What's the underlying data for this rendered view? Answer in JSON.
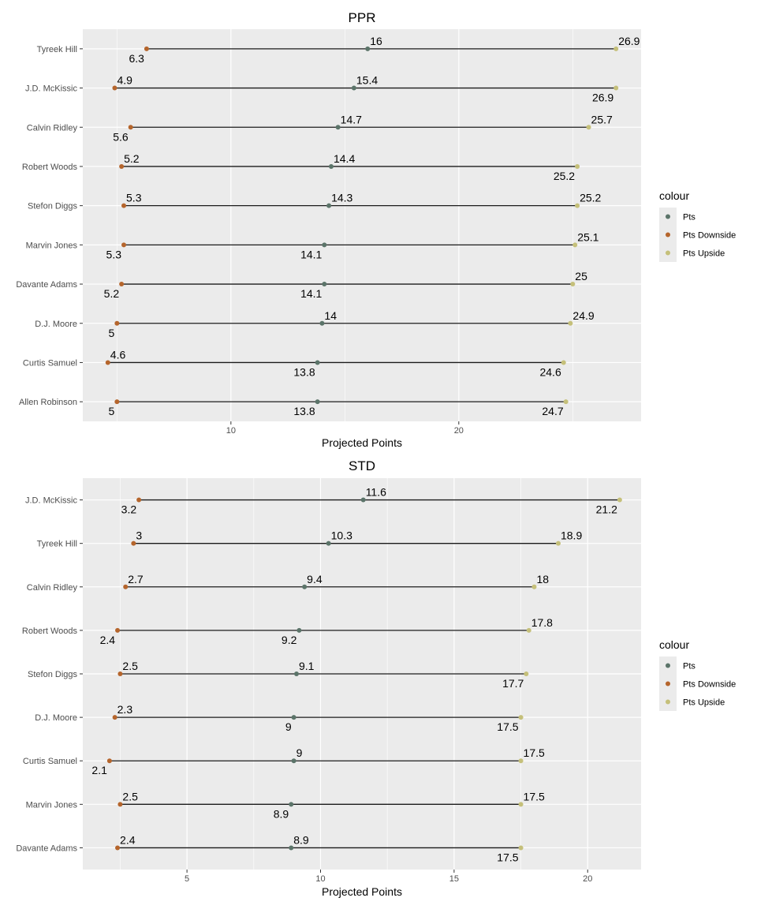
{
  "chart_data": [
    {
      "type": "dumbbell",
      "title": "PPR",
      "xlabel": "Projected Points",
      "xlim": [
        3.5,
        28.0
      ],
      "xticks": [
        10,
        20
      ],
      "grid": true,
      "legend_placement": "right",
      "legend_title": "colour",
      "legend": [
        {
          "label": "Pts",
          "color": "#5b7469"
        },
        {
          "label": "Pts Downside",
          "color": "#b5652c"
        },
        {
          "label": "Pts Upside",
          "color": "#c5c07a"
        }
      ],
      "categories": [
        "Tyreek Hill",
        "J.D. McKissic",
        "Calvin Ridley",
        "Robert Woods",
        "Stefon Diggs",
        "Marvin Jones",
        "Davante Adams",
        "D.J. Moore",
        "Curtis Samuel",
        "Allen Robinson"
      ],
      "series": [
        {
          "name": "Pts Downside",
          "values": [
            6.3,
            4.9,
            5.6,
            5.2,
            5.3,
            5.3,
            5.2,
            5.0,
            4.6,
            5.0
          ],
          "label_pos": [
            "below",
            "above",
            "below",
            "above",
            "above",
            "below",
            "below",
            "below",
            "above",
            "below"
          ]
        },
        {
          "name": "Pts",
          "values": [
            16,
            15.4,
            14.7,
            14.4,
            14.3,
            14.1,
            14.1,
            14,
            13.8,
            13.8
          ],
          "label_pos": [
            "above",
            "above",
            "above",
            "above",
            "above",
            "below",
            "below",
            "above",
            "below",
            "below"
          ]
        },
        {
          "name": "Pts Upside",
          "values": [
            26.9,
            26.9,
            25.7,
            25.2,
            25.2,
            25.1,
            25,
            24.9,
            24.6,
            24.7
          ],
          "label_pos": [
            "above",
            "below",
            "above",
            "below",
            "above",
            "above",
            "above",
            "above",
            "below",
            "below"
          ]
        }
      ]
    },
    {
      "type": "dumbbell",
      "title": "STD",
      "xlabel": "Projected Points",
      "xlim": [
        1.1,
        22.0
      ],
      "xticks": [
        5,
        10,
        15,
        20
      ],
      "grid": true,
      "legend_placement": "right",
      "legend_title": "colour",
      "legend": [
        {
          "label": "Pts",
          "color": "#5b7469"
        },
        {
          "label": "Pts Downside",
          "color": "#b5652c"
        },
        {
          "label": "Pts Upside",
          "color": "#c5c07a"
        }
      ],
      "categories": [
        "J.D. McKissic",
        "Tyreek Hill",
        "Calvin Ridley",
        "Robert Woods",
        "Stefon Diggs",
        "D.J. Moore",
        "Curtis Samuel",
        "Marvin Jones",
        "Davante Adams"
      ],
      "series": [
        {
          "name": "Pts Downside",
          "values": [
            3.2,
            3,
            2.7,
            2.4,
            2.5,
            2.3,
            2.1,
            2.5,
            2.4
          ],
          "label_pos": [
            "below",
            "above",
            "above",
            "below",
            "above",
            "above",
            "below",
            "above",
            "above"
          ]
        },
        {
          "name": "Pts",
          "values": [
            11.6,
            10.3,
            9.4,
            9.2,
            9.1,
            9,
            9,
            8.9,
            8.9
          ],
          "label_pos": [
            "above",
            "above",
            "above",
            "below",
            "above",
            "below",
            "above",
            "below",
            "above"
          ]
        },
        {
          "name": "Pts Upside",
          "values": [
            21.2,
            18.9,
            18,
            17.8,
            17.7,
            17.5,
            17.5,
            17.5,
            17.5
          ],
          "label_pos": [
            "below",
            "above",
            "above",
            "above",
            "below",
            "below",
            "above",
            "above",
            "below"
          ]
        }
      ]
    }
  ]
}
